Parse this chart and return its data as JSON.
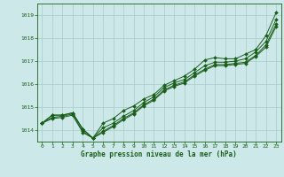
{
  "x": [
    0,
    1,
    2,
    3,
    4,
    5,
    6,
    7,
    8,
    9,
    10,
    11,
    12,
    13,
    14,
    15,
    16,
    17,
    18,
    19,
    20,
    21,
    22,
    23
  ],
  "line1": [
    1014.3,
    1014.65,
    1014.65,
    1014.75,
    1014.05,
    1013.65,
    1014.3,
    1014.5,
    1014.85,
    1015.05,
    1015.35,
    1015.55,
    1015.95,
    1016.15,
    1016.35,
    1016.65,
    1017.05,
    1017.15,
    1017.1,
    1017.1,
    1017.3,
    1017.5,
    1018.1,
    1019.1
  ],
  "line2": [
    1014.3,
    1014.65,
    1014.65,
    1014.75,
    1014.05,
    1013.65,
    1014.1,
    1014.3,
    1014.6,
    1014.85,
    1015.2,
    1015.45,
    1015.85,
    1016.05,
    1016.2,
    1016.5,
    1016.8,
    1016.95,
    1016.95,
    1017.0,
    1017.1,
    1017.4,
    1017.85,
    1018.8
  ],
  "line3": [
    1014.3,
    1014.55,
    1014.6,
    1014.7,
    1013.95,
    1013.65,
    1013.95,
    1014.2,
    1014.5,
    1014.75,
    1015.1,
    1015.35,
    1015.75,
    1015.95,
    1016.1,
    1016.4,
    1016.65,
    1016.85,
    1016.85,
    1016.9,
    1016.95,
    1017.25,
    1017.7,
    1018.6
  ],
  "line4": [
    1014.3,
    1014.5,
    1014.55,
    1014.65,
    1013.9,
    1013.65,
    1013.9,
    1014.15,
    1014.45,
    1014.7,
    1015.05,
    1015.3,
    1015.7,
    1015.9,
    1016.05,
    1016.35,
    1016.6,
    1016.8,
    1016.8,
    1016.85,
    1016.9,
    1017.2,
    1017.6,
    1018.5
  ],
  "ylim": [
    1013.5,
    1019.5
  ],
  "xlim": [
    -0.5,
    23.5
  ],
  "yticks": [
    1014,
    1015,
    1016,
    1017,
    1018,
    1019
  ],
  "xticks": [
    0,
    1,
    2,
    3,
    4,
    5,
    6,
    7,
    8,
    9,
    10,
    11,
    12,
    13,
    14,
    15,
    16,
    17,
    18,
    19,
    20,
    21,
    22,
    23
  ],
  "line_color": "#1a5e1a",
  "bg_color": "#cce8e8",
  "grid_color": "#aacccc",
  "label": "Graphe pression niveau de la mer (hPa)",
  "label_color": "#1a5e1a",
  "markersize": 2.0
}
